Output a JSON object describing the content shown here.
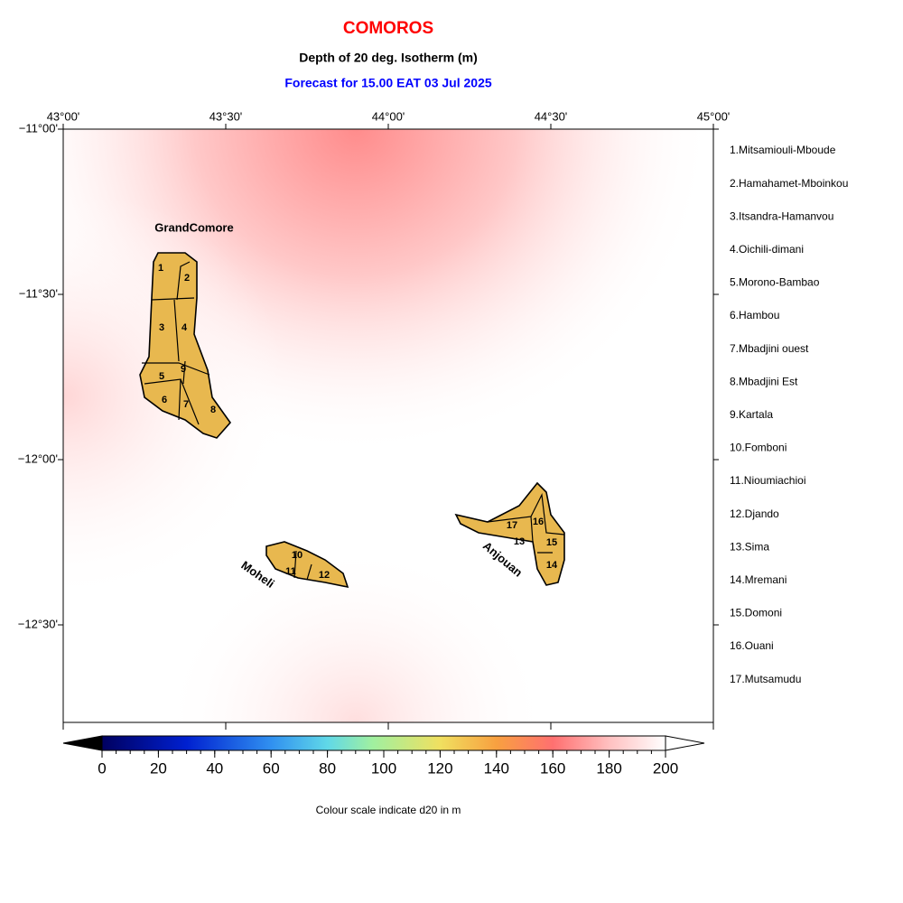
{
  "header": {
    "title": "COMOROS",
    "subtitle": "Depth of 20 deg. Isotherm (m)",
    "forecast": "Forecast for  15.00 EAT 03 Jul 2025"
  },
  "map": {
    "lon_ticks": [
      "43°00'",
      "43°30'",
      "44°00'",
      "44°30'",
      "45°00'"
    ],
    "lat_ticks": [
      "−11°00'",
      "−11°30'",
      "−12°00'",
      "−12°30'"
    ],
    "islands": [
      "GrandComore",
      "Moheli",
      "Anjouan"
    ],
    "region_numbers": [
      1,
      2,
      3,
      4,
      5,
      6,
      7,
      8,
      9,
      10,
      11,
      12,
      13,
      14,
      15,
      16,
      17
    ],
    "regions": [
      "1.Mitsamiouli-Mboude",
      "2.Hamahamet-Mboinkou",
      "3.Itsandra-Hamanvou",
      "4.Oichili-dimani",
      "5.Morono-Bambao",
      "6.Hambou",
      "7.Mbadjini ouest",
      "8.Mbadjini Est",
      "9.Kartala",
      "10.Fomboni",
      "11.Nioumiachioi",
      "12.Djando",
      "13.Sima",
      "14.Mremani",
      "15.Domoni",
      "16.Ouani",
      "17.Mutsamudu"
    ]
  },
  "colorbar": {
    "ticks": [
      0,
      20,
      40,
      60,
      80,
      100,
      120,
      140,
      160,
      180,
      200
    ],
    "caption": "Colour scale indicate d20 in m"
  }
}
